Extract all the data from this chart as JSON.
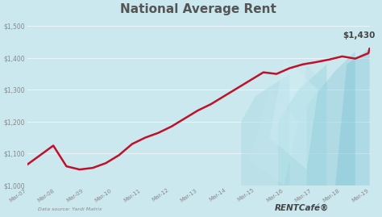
{
  "title": "National Average Rent",
  "title_fontsize": 11,
  "annotation": "$1,430",
  "annotation_fontsize": 8,
  "data_source": "Data source: Yardi Matrix",
  "rentcafe_text": "RENTCafé®",
  "bg_color": "#cce8ef",
  "line_color": "#c0102a",
  "line_width": 1.8,
  "ylim": [
    1000,
    1520
  ],
  "ytick_labels": [
    "$1,000",
    "$1,100",
    "$1,200",
    "$1,300",
    "$1,400",
    "$1,500"
  ],
  "ytick_values": [
    1000,
    1100,
    1200,
    1300,
    1400,
    1500
  ],
  "xtick_labels": [
    "Mar-07",
    "Mar-08",
    "Mar-09",
    "Mar-10",
    "Mar-11",
    "Mar-12",
    "Mar-13",
    "Mar-14",
    "Mar-15",
    "Mar-16",
    "Mar-17",
    "Mar-18",
    "Mar-19"
  ],
  "x_values": [
    0,
    1,
    2,
    3,
    4,
    5,
    6,
    7,
    8,
    9,
    10,
    11,
    12
  ],
  "y_values": [
    1065,
    1095,
    1125,
    1060,
    1050,
    1055,
    1070,
    1095,
    1130,
    1150,
    1165,
    1185,
    1210,
    1235,
    1255,
    1280,
    1305,
    1330,
    1355,
    1350,
    1368,
    1380,
    1387,
    1395,
    1405,
    1398,
    1415,
    1430
  ],
  "x_fine": [
    0,
    0.46,
    0.92,
    1.38,
    1.84,
    2.3,
    2.76,
    3.22,
    3.68,
    4.14,
    4.6,
    5.06,
    5.52,
    5.98,
    6.44,
    6.9,
    7.36,
    7.82,
    8.28,
    8.74,
    9.2,
    9.66,
    10.12,
    10.58,
    11.04,
    11.5,
    11.96,
    12.0
  ],
  "grid_color": "#b8d9e2",
  "tick_color": "#888888",
  "title_color": "#555555"
}
